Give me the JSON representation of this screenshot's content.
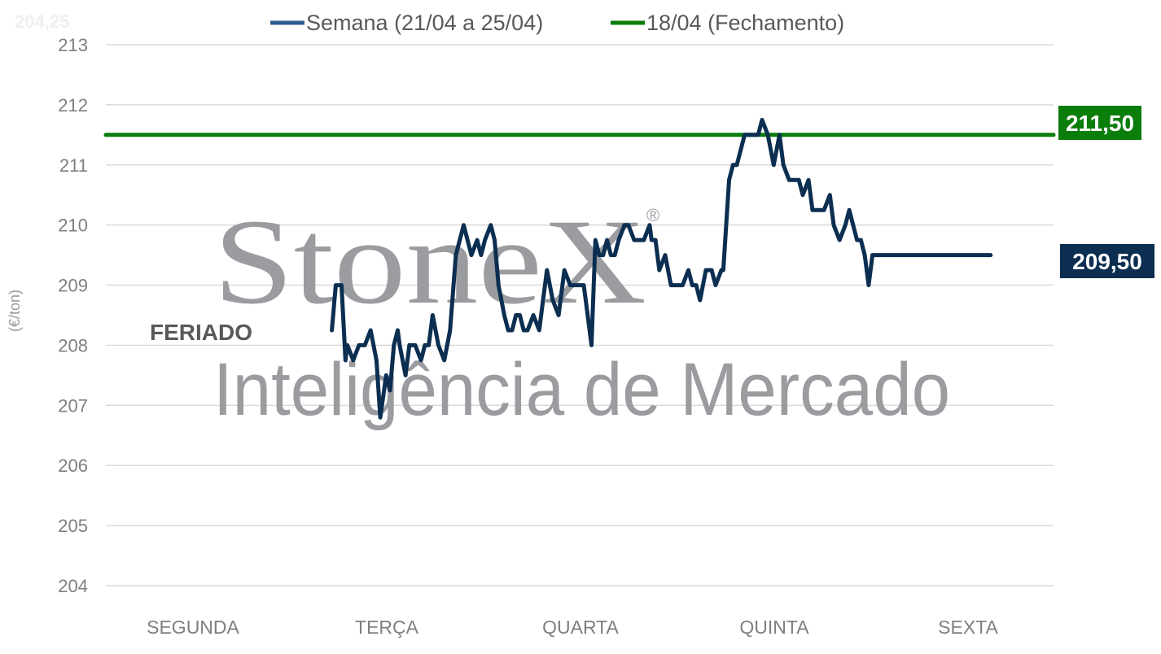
{
  "chart_data": {
    "type": "line",
    "ylabel": "(€/ton)",
    "ylim": [
      204,
      213
    ],
    "yticks": [
      "204",
      "205",
      "206",
      "207",
      "208",
      "209",
      "210",
      "211",
      "212",
      "213"
    ],
    "categories": [
      "SEGUNDA",
      "TERÇA",
      "QUARTA",
      "QUINTA",
      "SEXTA"
    ],
    "grid": true,
    "legend_position": "top",
    "faint_top_label": "204,25",
    "series": [
      {
        "name": "Semana (21/04 a 25/04)",
        "color": "#0b2e51",
        "legend_color": "#2f5b8e",
        "end_label": "209,50",
        "x": [
          0.99,
          1.01,
          1.04,
          1.06,
          1.07,
          1.1,
          1.13,
          1.16,
          1.19,
          1.22,
          1.24,
          1.27,
          1.29,
          1.31,
          1.33,
          1.34,
          1.37,
          1.39,
          1.4,
          1.42,
          1.45,
          1.47,
          1.49,
          1.51,
          1.54,
          1.57,
          1.6,
          1.63,
          1.65,
          1.67,
          1.71,
          1.74,
          1.76,
          1.78,
          1.81,
          1.83,
          1.85,
          1.88,
          1.9,
          1.92,
          1.94,
          1.96,
          1.98,
          2.0,
          2.03,
          2.06,
          2.08,
          2.1,
          2.13,
          2.16,
          2.19,
          2.22,
          2.24,
          2.26,
          2.29,
          2.31,
          2.33,
          2.35,
          2.37,
          2.39,
          2.41,
          2.43,
          2.45,
          2.47,
          2.5,
          2.52,
          2.55,
          2.57,
          2.6,
          2.63,
          2.64,
          2.66,
          2.68,
          2.71,
          2.74,
          2.77,
          2.8,
          2.83,
          2.85,
          2.87,
          2.89,
          2.92,
          2.95,
          2.97,
          3.0,
          3.01,
          3.04,
          3.06,
          3.08,
          3.1,
          3.12,
          3.15,
          3.17,
          3.19,
          3.21,
          3.24,
          3.27,
          3.3,
          3.32,
          3.35,
          3.37,
          3.4,
          3.42,
          3.45,
          3.47,
          3.5,
          3.53,
          3.56,
          3.58,
          3.61,
          3.64,
          3.66,
          3.7,
          3.72,
          3.74,
          3.76,
          3.78,
          3.8,
          3.83,
          3.85,
          3.87,
          3.9,
          3.93,
          3.95,
          3.98,
          4.0,
          4.02,
          4.05,
          4.08,
          4.1,
          4.13,
          4.15,
          4.18,
          4.2,
          4.22,
          4.24,
          4.27,
          4.3,
          4.32,
          4.35,
          4.37,
          4.39
        ],
        "values": [
          208.25,
          209.0,
          209.0,
          207.75,
          208.0,
          207.75,
          208.0,
          208.0,
          208.25,
          207.75,
          206.8,
          207.5,
          207.25,
          208.0,
          208.25,
          208.0,
          207.5,
          208.0,
          208.0,
          208.0,
          207.75,
          208.0,
          208.0,
          208.5,
          208.0,
          207.75,
          208.25,
          209.5,
          209.75,
          210.0,
          209.5,
          209.75,
          209.5,
          209.75,
          210.0,
          209.75,
          209.0,
          208.5,
          208.25,
          208.25,
          208.5,
          208.5,
          208.25,
          208.25,
          208.5,
          208.25,
          208.75,
          209.25,
          208.75,
          208.5,
          209.25,
          209.0,
          209.0,
          209.0,
          209.0,
          208.5,
          208.0,
          209.75,
          209.5,
          209.5,
          209.75,
          209.5,
          209.5,
          209.75,
          210.0,
          210.0,
          209.75,
          209.75,
          209.75,
          210.0,
          209.75,
          209.75,
          209.25,
          209.5,
          209.0,
          209.0,
          209.0,
          209.25,
          209.0,
          209.0,
          208.75,
          209.25,
          209.25,
          209.0,
          209.25,
          209.25,
          210.75,
          211.0,
          211.0,
          211.25,
          211.5,
          211.5,
          211.5,
          211.5,
          211.75,
          211.5,
          211.0,
          211.5,
          211.0,
          210.75,
          210.75,
          210.75,
          210.5,
          210.75,
          210.25,
          210.25,
          210.25,
          210.5,
          210.0,
          209.75,
          210.0,
          210.25,
          209.75,
          209.75,
          209.5,
          209.0,
          209.5,
          209.5,
          209.5,
          209.5,
          209.5,
          209.5,
          209.5,
          209.5,
          209.5,
          209.5,
          209.5,
          209.5,
          209.5,
          209.5,
          209.5,
          209.5,
          209.5,
          209.5,
          209.5,
          209.5,
          209.5,
          209.5,
          209.5,
          209.5,
          209.5,
          209.5
        ]
      },
      {
        "name": "18/04 (Fechamento)",
        "color": "#0a7d0a",
        "end_label": "211,50",
        "x": [
          0,
          4.4
        ],
        "values": [
          211.5,
          211.5
        ]
      }
    ],
    "annotations": [
      {
        "text": "FERIADO",
        "at_category": "SEGUNDA",
        "y": 208.2
      }
    ]
  },
  "watermark": {
    "brand": "StoneX",
    "registered": "®",
    "tagline": "Inteligência de Mercado"
  }
}
